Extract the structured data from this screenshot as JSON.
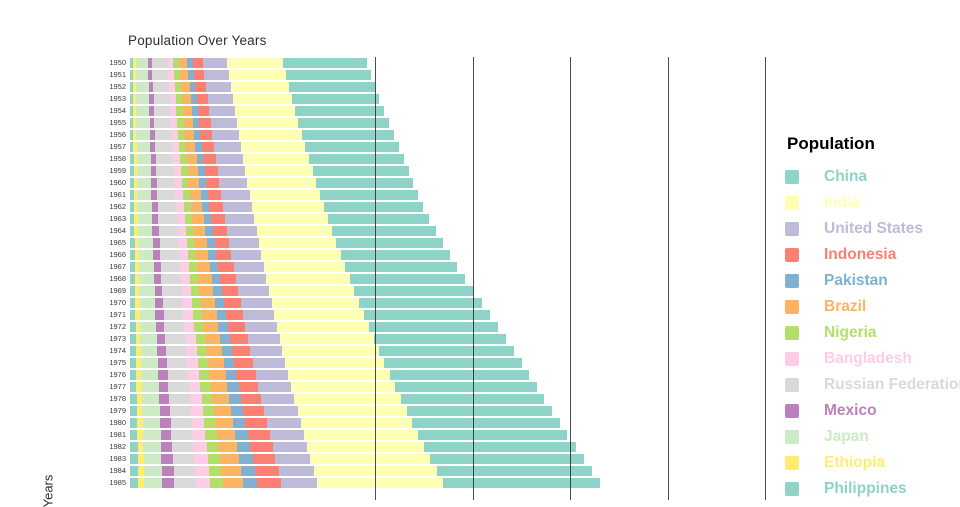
{
  "chart": {
    "title": "Population Over Years",
    "y_axis_title": "Years"
  },
  "legend": {
    "title": "Population",
    "items": [
      {
        "label": "China",
        "color": "#8dd3c7"
      },
      {
        "label": "India",
        "color": "#ffffb3"
      },
      {
        "label": "United States",
        "color": "#bebada"
      },
      {
        "label": "Indonesia",
        "color": "#fb8072"
      },
      {
        "label": "Pakistan",
        "color": "#80b1d3"
      },
      {
        "label": "Brazil",
        "color": "#fdb462"
      },
      {
        "label": "Nigeria",
        "color": "#b3de69"
      },
      {
        "label": "Bangladesh",
        "color": "#fccde5"
      },
      {
        "label": "Russian Federation",
        "color": "#d9d9d9"
      },
      {
        "label": "Mexico",
        "color": "#bc80bd"
      },
      {
        "label": "Japan",
        "color": "#ccebc5"
      },
      {
        "label": "Ethiopia",
        "color": "#ffed6f"
      },
      {
        "label": "Philippines",
        "color": "#8dd3c7"
      }
    ]
  },
  "chart_data": {
    "type": "bar",
    "orientation": "horizontal",
    "stacked": true,
    "title": "Population Over Years",
    "xlabel": "",
    "ylabel": "Years",
    "values_unit": "millions (approx., read from bar lengths)",
    "legend_position": "right",
    "grid": "vertical lines, unlabeled (x tick labels below visible area)",
    "years": [
      1950,
      1951,
      1952,
      1953,
      1954,
      1955,
      1956,
      1957,
      1958,
      1959,
      1960,
      1961,
      1962,
      1963,
      1964,
      1965,
      1966,
      1967,
      1968,
      1969,
      1970,
      1971,
      1972,
      1973,
      1974,
      1975,
      1976,
      1977,
      1978,
      1979,
      1980,
      1981,
      1982,
      1983,
      1984,
      1985
    ],
    "stack_order_left_to_right": [
      "Philippines",
      "Ethiopia",
      "Japan",
      "Mexico",
      "Russian Federation",
      "Bangladesh",
      "Nigeria",
      "Brazil",
      "Pakistan",
      "Indonesia",
      "United States",
      "India",
      "China"
    ],
    "series": [
      {
        "name": "China",
        "color": "#8dd3c7",
        "values": [
          554,
          563,
          572,
          582,
          593,
          603,
          614,
          626,
          636,
          644,
          648,
          650,
          658,
          674,
          691,
          710,
          729,
          748,
          768,
          789,
          818,
          841,
          862,
          882,
          900,
          916,
          931,
          943,
          956,
          969,
          981,
          994,
          1009,
          1023,
          1037,
          1051
        ]
      },
      {
        "name": "India",
        "color": "#ffffb3",
        "values": [
          376,
          382,
          389,
          396,
          404,
          412,
          421,
          430,
          439,
          449,
          459,
          470,
          481,
          492,
          504,
          517,
          529,
          542,
          556,
          569,
          584,
          598,
          613,
          628,
          644,
          660,
          676,
          693,
          710,
          727,
          745,
          763,
          782,
          801,
          820,
          839
        ]
      },
      {
        "name": "United States",
        "color": "#bebada",
        "values": [
          159,
          162,
          164,
          167,
          170,
          172,
          175,
          178,
          181,
          183,
          186,
          189,
          191,
          193,
          195,
          197,
          199,
          201,
          203,
          205,
          206,
          208,
          210,
          212,
          213,
          215,
          217,
          219,
          221,
          223,
          226,
          228,
          230,
          232,
          234,
          236
        ]
      },
      {
        "name": "Indonesia",
        "color": "#fb8072",
        "values": [
          70,
          71,
          73,
          74,
          76,
          77,
          79,
          81,
          83,
          85,
          87,
          89,
          91,
          93,
          96,
          98,
          100,
          103,
          105,
          108,
          111,
          114,
          117,
          120,
          123,
          126,
          129,
          132,
          136,
          139,
          143,
          146,
          150,
          153,
          157,
          161
        ]
      },
      {
        "name": "Pakistan",
        "color": "#80b1d3",
        "values": [
          38,
          38,
          39,
          40,
          41,
          42,
          43,
          44,
          45,
          46,
          47,
          48,
          49,
          50,
          52,
          53,
          54,
          56,
          57,
          59,
          60,
          62,
          64,
          66,
          68,
          70,
          72,
          74,
          76,
          79,
          81,
          84,
          86,
          89,
          92,
          95
        ]
      },
      {
        "name": "Brazil",
        "color": "#fdb462",
        "values": [
          54,
          56,
          57,
          59,
          61,
          62,
          64,
          66,
          68,
          70,
          72,
          74,
          76,
          79,
          81,
          83,
          85,
          88,
          90,
          93,
          95,
          98,
          100,
          103,
          105,
          108,
          111,
          113,
          116,
          119,
          121,
          124,
          127,
          130,
          133,
          136
        ]
      },
      {
        "name": "Nigeria",
        "color": "#b3de69",
        "values": [
          38,
          39,
          39,
          40,
          41,
          42,
          42,
          43,
          44,
          45,
          45,
          46,
          47,
          48,
          49,
          50,
          51,
          52,
          54,
          55,
          56,
          57,
          59,
          60,
          62,
          63,
          65,
          67,
          69,
          71,
          73,
          75,
          77,
          79,
          81,
          83
        ]
      },
      {
        "name": "Bangladesh",
        "color": "#fccde5",
        "values": [
          38,
          39,
          40,
          41,
          42,
          43,
          44,
          45,
          46,
          48,
          49,
          50,
          52,
          53,
          55,
          57,
          58,
          60,
          62,
          64,
          66,
          68,
          69,
          71,
          72,
          74,
          76,
          78,
          81,
          83,
          85,
          88,
          90,
          93,
          95,
          98
        ]
      },
      {
        "name": "Russian Federation",
        "color": "#d9d9d9",
        "values": [
          103,
          104,
          106,
          107,
          109,
          110,
          112,
          113,
          115,
          117,
          118,
          120,
          121,
          122,
          124,
          125,
          126,
          127,
          128,
          129,
          130,
          131,
          131,
          132,
          133,
          134,
          135,
          136,
          136,
          137,
          138,
          139,
          140,
          141,
          142,
          143
        ]
      },
      {
        "name": "Mexico",
        "color": "#bc80bd",
        "values": [
          28,
          29,
          30,
          31,
          31,
          32,
          33,
          34,
          35,
          36,
          38,
          39,
          40,
          41,
          43,
          44,
          46,
          47,
          49,
          50,
          52,
          54,
          55,
          57,
          59,
          61,
          63,
          65,
          67,
          69,
          70,
          72,
          74,
          75,
          77,
          78
        ]
      },
      {
        "name": "Japan",
        "color": "#ccebc5",
        "values": [
          83,
          84,
          86,
          87,
          88,
          89,
          90,
          91,
          92,
          93,
          93,
          94,
          95,
          96,
          97,
          98,
          99,
          100,
          101,
          103,
          104,
          105,
          107,
          109,
          110,
          112,
          113,
          114,
          115,
          116,
          117,
          118,
          118,
          119,
          120,
          121
        ]
      },
      {
        "name": "Ethiopia",
        "color": "#ffed6f",
        "values": [
          18,
          18,
          19,
          19,
          19,
          20,
          20,
          21,
          21,
          22,
          22,
          23,
          23,
          24,
          24,
          25,
          26,
          26,
          27,
          28,
          29,
          29,
          30,
          31,
          32,
          33,
          33,
          34,
          35,
          36,
          37,
          38,
          39,
          40,
          41,
          41
        ]
      },
      {
        "name": "Philippines",
        "color": "#8dd3c7",
        "values": [
          19,
          19,
          20,
          20,
          21,
          22,
          22,
          23,
          24,
          24,
          25,
          26,
          27,
          28,
          29,
          30,
          31,
          32,
          33,
          34,
          35,
          36,
          37,
          38,
          39,
          41,
          42,
          43,
          44,
          46,
          47,
          48,
          50,
          51,
          53,
          54
        ]
      }
    ]
  }
}
